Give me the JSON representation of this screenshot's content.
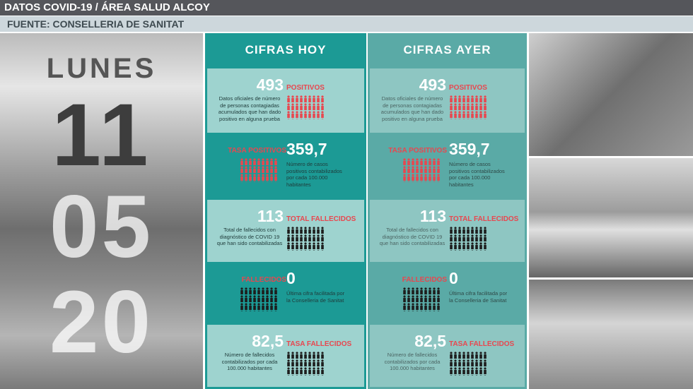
{
  "header": {
    "title": "DATOS COVID-19 / ÁREA SALUD ALCOY",
    "source": "FUENTE: CONSELLERIA DE SANITAT"
  },
  "date": {
    "weekday": "LUNES",
    "day": "11",
    "month": "05",
    "year": "20"
  },
  "columns": [
    {
      "heading": "CIFRAS HOY",
      "items": [
        {
          "value": "493",
          "label": "POSITIVOS",
          "description": "Datos oficiales de número de personas contagiadas acumulados que han dado positivo en alguna prueba"
        },
        {
          "value": "359,7",
          "label": "TASA POSITIVOS",
          "description": "Número de casos positivos contabilizados por cada 100.000 habitantes"
        },
        {
          "value": "113",
          "label": "TOTAL FALLECIDOS",
          "description": "Total de fallecidos con diagnóstico de COVID 19 que han sido contabilizadas"
        },
        {
          "value": "0",
          "label": "FALLECIDOS",
          "description": "Última cifra facilitada por la Conselleria de Sanitat"
        },
        {
          "value": "82,5",
          "label": "TASA FALLECIDOS",
          "description": "Número de fallecidos contabilizados por cada 100.000 habitantes"
        }
      ]
    },
    {
      "heading": "CIFRAS AYER",
      "items": [
        {
          "value": "493",
          "label": "POSITIVOS",
          "description": "Datos oficiales de número de personas contagiadas acumulados que han dado positivo en alguna prueba"
        },
        {
          "value": "359,7",
          "label": "TASA POSITIVOS",
          "description": "Número de casos positivos contabilizados por cada 100.000 habitantes"
        },
        {
          "value": "113",
          "label": "TOTAL FALLECIDOS",
          "description": "Total de fallecidos con diagnóstico de COVID 19 que han sido contabilizadas"
        },
        {
          "value": "0",
          "label": "FALLECIDOS",
          "description": "Última cifra facilitada por la Conselleria de Sanitat"
        },
        {
          "value": "82,5",
          "label": "TASA FALLECIDOS",
          "description": "Número de fallecidos contabilizados por cada 100.000 habitantes"
        }
      ]
    }
  ]
}
